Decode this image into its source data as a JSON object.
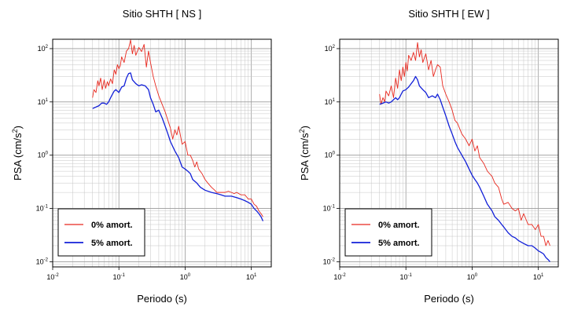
{
  "chart_data": [
    {
      "type": "line",
      "title": "Sitio SHTH [ NS ]",
      "xlabel": "Periodo (s)",
      "ylabel": "PSA (cm/s",
      "ylabel_sup": "2",
      "ylabel_end": ")",
      "x_scale": "log",
      "y_scale": "log",
      "xlim": [
        0.01,
        20
      ],
      "ylim": [
        0.008,
        150
      ],
      "grid": true,
      "legend_position": "bottom-left",
      "x_tick_labels": [
        {
          "value": 0.01,
          "base": "10",
          "exp": "-2"
        },
        {
          "value": 0.1,
          "base": "10",
          "exp": "-1"
        },
        {
          "value": 1,
          "base": "10",
          "exp": "0"
        },
        {
          "value": 10,
          "base": "10",
          "exp": "1"
        }
      ],
      "y_tick_labels": [
        {
          "value": 0.01,
          "base": "10",
          "exp": "-2"
        },
        {
          "value": 0.1,
          "base": "10",
          "exp": "-1"
        },
        {
          "value": 1,
          "base": "10",
          "exp": "0"
        },
        {
          "value": 10,
          "base": "10",
          "exp": "1"
        },
        {
          "value": 100,
          "base": "10",
          "exp": "2"
        }
      ],
      "series": [
        {
          "name": "0% amort.",
          "color": "#e8281e",
          "x": [
            0.04,
            0.042,
            0.045,
            0.048,
            0.05,
            0.053,
            0.056,
            0.06,
            0.063,
            0.067,
            0.07,
            0.075,
            0.08,
            0.085,
            0.09,
            0.095,
            0.1,
            0.105,
            0.11,
            0.12,
            0.13,
            0.14,
            0.15,
            0.16,
            0.17,
            0.18,
            0.2,
            0.22,
            0.24,
            0.26,
            0.28,
            0.3,
            0.33,
            0.36,
            0.4,
            0.45,
            0.5,
            0.55,
            0.6,
            0.65,
            0.7,
            0.75,
            0.8,
            0.9,
            1.0,
            1.1,
            1.2,
            1.3,
            1.4,
            1.5,
            1.6,
            1.8,
            2.0,
            2.2,
            2.5,
            2.8,
            3.0,
            3.5,
            4.0,
            4.5,
            5.0,
            5.5,
            6.0,
            7.0,
            8.0,
            9.0,
            10.0,
            11.0,
            12.0,
            13.0,
            14.0,
            15.0
          ],
          "values": [
            12,
            17,
            15,
            25,
            20,
            28,
            17,
            26,
            18,
            24,
            20,
            27,
            22,
            40,
            33,
            50,
            42,
            48,
            70,
            55,
            90,
            100,
            145,
            80,
            115,
            75,
            105,
            88,
            120,
            45,
            90,
            55,
            30,
            20,
            13,
            9,
            6.5,
            4.5,
            3.2,
            2.0,
            3.0,
            2.4,
            3.5,
            1.6,
            1.8,
            1.0,
            1.0,
            0.8,
            0.6,
            0.75,
            0.55,
            0.45,
            0.35,
            0.3,
            0.25,
            0.22,
            0.2,
            0.2,
            0.2,
            0.21,
            0.2,
            0.19,
            0.2,
            0.18,
            0.18,
            0.15,
            0.15,
            0.12,
            0.11,
            0.09,
            0.08,
            0.07
          ]
        },
        {
          "name": "5% amort.",
          "color": "#1220d8",
          "x": [
            0.04,
            0.045,
            0.05,
            0.055,
            0.06,
            0.065,
            0.07,
            0.075,
            0.08,
            0.085,
            0.09,
            0.1,
            0.11,
            0.12,
            0.13,
            0.14,
            0.15,
            0.16,
            0.18,
            0.2,
            0.22,
            0.25,
            0.28,
            0.3,
            0.33,
            0.36,
            0.4,
            0.45,
            0.5,
            0.55,
            0.6,
            0.7,
            0.8,
            0.9,
            1.0,
            1.1,
            1.2,
            1.3,
            1.5,
            1.7,
            2.0,
            2.5,
            3.0,
            3.5,
            4.0,
            4.5,
            5.0,
            6.0,
            7.0,
            8.0,
            9.0,
            10.0,
            11.0,
            12.0,
            13.0,
            14.0,
            15.0
          ],
          "values": [
            7.5,
            8,
            8.5,
            9.5,
            9.5,
            9,
            10,
            12,
            14,
            16,
            17,
            15,
            19,
            20,
            28,
            34,
            35,
            26,
            22,
            20,
            21,
            20,
            17,
            12,
            9,
            6.5,
            7.0,
            5.0,
            3.5,
            2.5,
            1.8,
            1.2,
            0.9,
            0.6,
            0.55,
            0.5,
            0.45,
            0.35,
            0.3,
            0.25,
            0.22,
            0.2,
            0.19,
            0.18,
            0.17,
            0.17,
            0.17,
            0.16,
            0.15,
            0.14,
            0.13,
            0.12,
            0.1,
            0.09,
            0.08,
            0.07,
            0.058
          ]
        }
      ]
    },
    {
      "type": "line",
      "title": "Sitio SHTH [ EW ]",
      "xlabel": "Periodo (s)",
      "ylabel": "PSA (cm/s",
      "ylabel_sup": "2",
      "ylabel_end": ")",
      "x_scale": "log",
      "y_scale": "log",
      "xlim": [
        0.01,
        20
      ],
      "ylim": [
        0.008,
        150
      ],
      "grid": true,
      "legend_position": "bottom-left",
      "x_tick_labels": [
        {
          "value": 0.01,
          "base": "10",
          "exp": "-2"
        },
        {
          "value": 0.1,
          "base": "10",
          "exp": "-1"
        },
        {
          "value": 1,
          "base": "10",
          "exp": "0"
        },
        {
          "value": 10,
          "base": "10",
          "exp": "1"
        }
      ],
      "y_tick_labels": [
        {
          "value": 0.01,
          "base": "10",
          "exp": "-2"
        },
        {
          "value": 0.1,
          "base": "10",
          "exp": "-1"
        },
        {
          "value": 1,
          "base": "10",
          "exp": "0"
        },
        {
          "value": 10,
          "base": "10",
          "exp": "1"
        },
        {
          "value": 100,
          "base": "10",
          "exp": "2"
        }
      ],
      "series": [
        {
          "name": "0% amort.",
          "color": "#e8281e",
          "x": [
            0.04,
            0.042,
            0.045,
            0.048,
            0.05,
            0.055,
            0.06,
            0.065,
            0.07,
            0.075,
            0.08,
            0.085,
            0.09,
            0.095,
            0.1,
            0.105,
            0.11,
            0.12,
            0.13,
            0.14,
            0.15,
            0.16,
            0.17,
            0.18,
            0.2,
            0.22,
            0.24,
            0.26,
            0.28,
            0.3,
            0.33,
            0.36,
            0.4,
            0.45,
            0.5,
            0.55,
            0.6,
            0.7,
            0.8,
            0.9,
            1.0,
            1.1,
            1.2,
            1.3,
            1.5,
            1.7,
            2.0,
            2.2,
            2.5,
            2.8,
            3.0,
            3.5,
            4.0,
            4.5,
            5.0,
            5.5,
            6.0,
            7.0,
            8.0,
            9.0,
            10.0,
            11.0,
            12.0,
            13.0,
            14.0,
            15.0
          ],
          "values": [
            14,
            9,
            12,
            10,
            16,
            13,
            20,
            12,
            28,
            18,
            40,
            25,
            45,
            30,
            55,
            38,
            75,
            60,
            85,
            60,
            130,
            70,
            95,
            55,
            80,
            40,
            60,
            30,
            40,
            50,
            45,
            20,
            14,
            10,
            7,
            4.5,
            4.0,
            2.5,
            2.0,
            1.5,
            2.0,
            1.2,
            1.5,
            0.9,
            0.7,
            0.5,
            0.4,
            0.3,
            0.25,
            0.15,
            0.12,
            0.13,
            0.1,
            0.09,
            0.1,
            0.06,
            0.08,
            0.05,
            0.05,
            0.04,
            0.05,
            0.03,
            0.03,
            0.02,
            0.025,
            0.02
          ]
        },
        {
          "name": "5% amort.",
          "color": "#1220d8",
          "x": [
            0.04,
            0.045,
            0.05,
            0.055,
            0.06,
            0.065,
            0.07,
            0.075,
            0.08,
            0.085,
            0.09,
            0.1,
            0.11,
            0.12,
            0.13,
            0.14,
            0.15,
            0.16,
            0.18,
            0.2,
            0.22,
            0.25,
            0.28,
            0.3,
            0.33,
            0.36,
            0.4,
            0.45,
            0.5,
            0.55,
            0.6,
            0.7,
            0.8,
            0.9,
            1.0,
            1.1,
            1.2,
            1.3,
            1.5,
            1.7,
            2.0,
            2.2,
            2.5,
            2.8,
            3.0,
            3.5,
            4.0,
            4.5,
            5.0,
            6.0,
            7.0,
            8.0,
            9.0,
            10.0,
            11.0,
            12.0,
            13.0,
            14.0,
            15.0
          ],
          "values": [
            9,
            9.5,
            10,
            9.5,
            10,
            11,
            12,
            11,
            12,
            14,
            16,
            17,
            19,
            22,
            25,
            30,
            26,
            20,
            17,
            15,
            12,
            13,
            12,
            14,
            11,
            8,
            5.5,
            3.5,
            2.5,
            1.8,
            1.4,
            1.0,
            0.75,
            0.55,
            0.42,
            0.35,
            0.3,
            0.25,
            0.17,
            0.12,
            0.09,
            0.07,
            0.06,
            0.05,
            0.045,
            0.035,
            0.03,
            0.028,
            0.025,
            0.022,
            0.02,
            0.02,
            0.018,
            0.016,
            0.015,
            0.014,
            0.012,
            0.011,
            0.01
          ]
        }
      ]
    }
  ]
}
